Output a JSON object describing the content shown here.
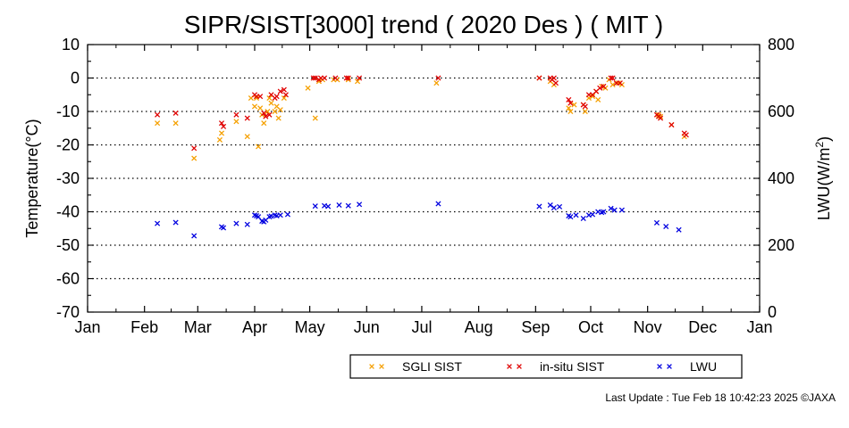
{
  "chart_data": {
    "type": "scatter",
    "title": "SIPR/SIST[3000] trend ( 2020 Des ) ( MIT )",
    "ylabel_left": "Temperature(°C)",
    "ylabel_right_main": "LWU(W/m",
    "ylabel_right_sup": "2",
    "ylabel_right_tail": ")",
    "x_tick_labels": [
      "Jan",
      "Feb",
      "Mar",
      "Apr",
      "May",
      "Jun",
      "Jul",
      "Aug",
      "Sep",
      "Oct",
      "Nov",
      "Dec",
      "Jan"
    ],
    "ylim_left": [
      -70,
      10
    ],
    "ylim_right": [
      0,
      800
    ],
    "y_ticks_left": [
      "10",
      "0",
      "-10",
      "-20",
      "-30",
      "-40",
      "-50",
      "-60",
      "-70"
    ],
    "y_ticks_right": [
      "800",
      "600",
      "400",
      "200",
      "0"
    ],
    "x_axis_unit": "day of year (Jan 1 = 0, next Jan 1 = 366)",
    "legend": {
      "position": "bottom-center",
      "entries": [
        "SGLI SIST",
        "in-situ SIST",
        "LWU"
      ]
    },
    "colors": {
      "sgli": "#f5a000",
      "insitu": "#e00000",
      "lwu": "#0000e0",
      "grid": "#000000"
    },
    "series": [
      {
        "name": "SGLI SIST",
        "axis": "left",
        "x": [
          38,
          48,
          58,
          72,
          73,
          81,
          87,
          89,
          91,
          92,
          93,
          94,
          95,
          96,
          98,
          99,
          100,
          102,
          103,
          104,
          105,
          107,
          120,
          124,
          126,
          128,
          134,
          136,
          142,
          147,
          190,
          246,
          252,
          253,
          254,
          262,
          263,
          265,
          270,
          271,
          273,
          275,
          277,
          278,
          280,
          282,
          284,
          286,
          289,
          291,
          311,
          312,
          318,
          325
        ],
        "y": [
          -13.5,
          -13.5,
          -24,
          -18.5,
          -16.5,
          -13,
          -17.5,
          -6,
          -8.5,
          -6,
          -20.5,
          -9,
          -11,
          -13.5,
          -10,
          -6,
          -7.5,
          -10,
          -8.5,
          -12,
          -9.5,
          -6,
          -3,
          -12,
          -1,
          -0.5,
          -0.5,
          -0.5,
          -0.5,
          -1,
          -1.5,
          0,
          -1,
          -0.5,
          -2,
          -9,
          -10,
          -8,
          -8,
          -10,
          -6,
          -5.5,
          -4,
          -6.5,
          -2.5,
          -3,
          -0.5,
          -2,
          -1.5,
          -2,
          -11,
          -11.5,
          -14,
          -17.5
        ]
      },
      {
        "name": "in-situ SIST",
        "axis": "left",
        "x": [
          38,
          48,
          58,
          73,
          74,
          81,
          87,
          91,
          92,
          94,
          96,
          97,
          99,
          100,
          102,
          103,
          105,
          107,
          108,
          123,
          124,
          126,
          127,
          129,
          135,
          141,
          142,
          148,
          191,
          246,
          252,
          253,
          254,
          255,
          262,
          263,
          270,
          271,
          273,
          275,
          277,
          279,
          281,
          285,
          286,
          288,
          290,
          310,
          311,
          312,
          318,
          325,
          326
        ],
        "y": [
          -11,
          -10.5,
          -21,
          -13.5,
          -14.5,
          -11,
          -12,
          -5,
          -5.5,
          -5.5,
          -10.5,
          -11.5,
          -11,
          -5,
          -6,
          -5.5,
          -4,
          -3.5,
          -5,
          0,
          0,
          -0.5,
          0,
          0,
          0,
          0,
          0,
          0,
          0,
          0,
          0,
          -0.5,
          0,
          -1.5,
          -6.5,
          -7.5,
          -8,
          -8.5,
          -5,
          -5,
          -4,
          -3,
          -2.5,
          0,
          0,
          -1.5,
          -1.5,
          -11,
          -11.5,
          -12,
          -14,
          -16.5,
          -17
        ]
      },
      {
        "name": "LWU",
        "axis": "right",
        "x": [
          38,
          48,
          58,
          73,
          74,
          81,
          87,
          91,
          92,
          93,
          95,
          96,
          97,
          99,
          100,
          102,
          103,
          105,
          109,
          124,
          129,
          131,
          137,
          142,
          148,
          191,
          246,
          252,
          254,
          257,
          262,
          263,
          266,
          270,
          273,
          275,
          278,
          280,
          281,
          285,
          287,
          291,
          310,
          315,
          322
        ],
        "y": [
          265,
          268,
          228,
          255,
          252,
          265,
          262,
          290,
          288,
          285,
          272,
          270,
          275,
          285,
          287,
          290,
          288,
          290,
          292,
          317,
          318,
          316,
          320,
          318,
          322,
          324,
          316,
          320,
          312,
          315,
          288,
          285,
          290,
          280,
          290,
          292,
          300,
          298,
          300,
          310,
          305,
          305,
          267,
          256,
          246
        ]
      }
    ]
  },
  "legend_text": {
    "sgli": "SGLI SIST",
    "insitu": "in-situ SIST",
    "lwu": "LWU"
  },
  "footer": {
    "last_update": "Last Update : Tue Feb 18 10:42:23 2025  ©JAXA"
  }
}
